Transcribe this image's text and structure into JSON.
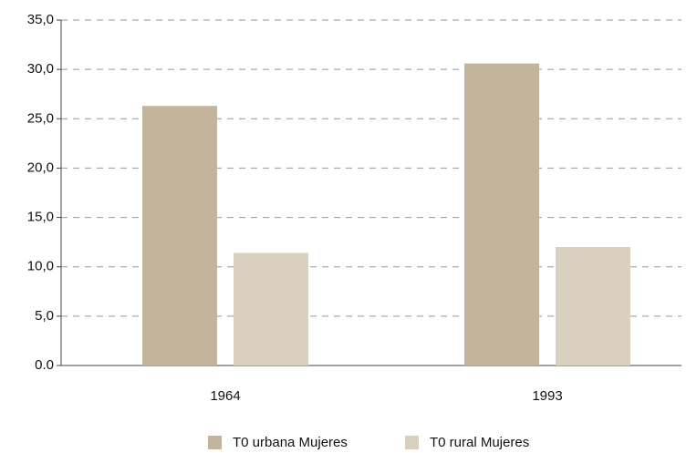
{
  "chart_data": {
    "type": "bar",
    "categories": [
      "1964",
      "1993"
    ],
    "series": [
      {
        "name": "T0 urbana Mujeres",
        "color": "#c2b59b",
        "values": [
          26.3,
          30.6
        ]
      },
      {
        "name": "T0 rural Mujeres",
        "color": "#d9d0bf",
        "values": [
          11.4,
          12.0
        ]
      }
    ],
    "ylim": [
      0,
      35
    ],
    "yticks": [
      {
        "value": 0,
        "label": "0.0"
      },
      {
        "value": 5,
        "label": "5,0"
      },
      {
        "value": 10,
        "label": "10,0"
      },
      {
        "value": 15,
        "label": "15,0"
      },
      {
        "value": 20,
        "label": "20,0"
      },
      {
        "value": 25,
        "label": "25,0"
      },
      {
        "value": 30,
        "label": "30,0"
      },
      {
        "value": 35,
        "label": "35,0"
      }
    ],
    "grid": true,
    "legend": "bottom"
  }
}
